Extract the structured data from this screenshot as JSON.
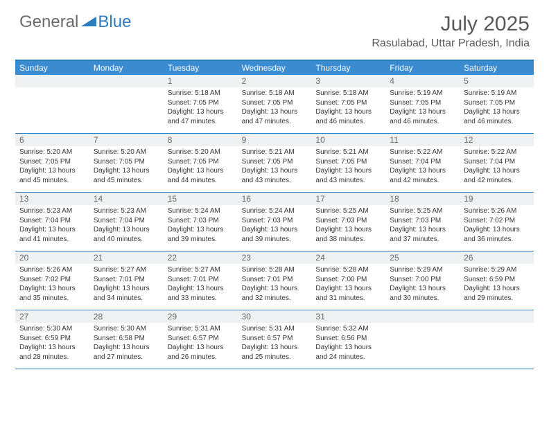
{
  "logo": {
    "general": "General",
    "blue": "Blue"
  },
  "title": "July 2025",
  "subtitle": "Rasulabad, Uttar Pradesh, India",
  "colors": {
    "header_blue": "#3b8bd0",
    "border_blue": "#2e7cc0",
    "daynum_bg": "#eef0f2",
    "text_gray": "#5a5a5a"
  },
  "weekdays": [
    "Sunday",
    "Monday",
    "Tuesday",
    "Wednesday",
    "Thursday",
    "Friday",
    "Saturday"
  ],
  "weeks": [
    [
      null,
      null,
      {
        "n": "1",
        "sr": "Sunrise: 5:18 AM",
        "ss": "Sunset: 7:05 PM",
        "dl": "Daylight: 13 hours and 47 minutes."
      },
      {
        "n": "2",
        "sr": "Sunrise: 5:18 AM",
        "ss": "Sunset: 7:05 PM",
        "dl": "Daylight: 13 hours and 47 minutes."
      },
      {
        "n": "3",
        "sr": "Sunrise: 5:18 AM",
        "ss": "Sunset: 7:05 PM",
        "dl": "Daylight: 13 hours and 46 minutes."
      },
      {
        "n": "4",
        "sr": "Sunrise: 5:19 AM",
        "ss": "Sunset: 7:05 PM",
        "dl": "Daylight: 13 hours and 46 minutes."
      },
      {
        "n": "5",
        "sr": "Sunrise: 5:19 AM",
        "ss": "Sunset: 7:05 PM",
        "dl": "Daylight: 13 hours and 46 minutes."
      }
    ],
    [
      {
        "n": "6",
        "sr": "Sunrise: 5:20 AM",
        "ss": "Sunset: 7:05 PM",
        "dl": "Daylight: 13 hours and 45 minutes."
      },
      {
        "n": "7",
        "sr": "Sunrise: 5:20 AM",
        "ss": "Sunset: 7:05 PM",
        "dl": "Daylight: 13 hours and 45 minutes."
      },
      {
        "n": "8",
        "sr": "Sunrise: 5:20 AM",
        "ss": "Sunset: 7:05 PM",
        "dl": "Daylight: 13 hours and 44 minutes."
      },
      {
        "n": "9",
        "sr": "Sunrise: 5:21 AM",
        "ss": "Sunset: 7:05 PM",
        "dl": "Daylight: 13 hours and 43 minutes."
      },
      {
        "n": "10",
        "sr": "Sunrise: 5:21 AM",
        "ss": "Sunset: 7:05 PM",
        "dl": "Daylight: 13 hours and 43 minutes."
      },
      {
        "n": "11",
        "sr": "Sunrise: 5:22 AM",
        "ss": "Sunset: 7:04 PM",
        "dl": "Daylight: 13 hours and 42 minutes."
      },
      {
        "n": "12",
        "sr": "Sunrise: 5:22 AM",
        "ss": "Sunset: 7:04 PM",
        "dl": "Daylight: 13 hours and 42 minutes."
      }
    ],
    [
      {
        "n": "13",
        "sr": "Sunrise: 5:23 AM",
        "ss": "Sunset: 7:04 PM",
        "dl": "Daylight: 13 hours and 41 minutes."
      },
      {
        "n": "14",
        "sr": "Sunrise: 5:23 AM",
        "ss": "Sunset: 7:04 PM",
        "dl": "Daylight: 13 hours and 40 minutes."
      },
      {
        "n": "15",
        "sr": "Sunrise: 5:24 AM",
        "ss": "Sunset: 7:03 PM",
        "dl": "Daylight: 13 hours and 39 minutes."
      },
      {
        "n": "16",
        "sr": "Sunrise: 5:24 AM",
        "ss": "Sunset: 7:03 PM",
        "dl": "Daylight: 13 hours and 39 minutes."
      },
      {
        "n": "17",
        "sr": "Sunrise: 5:25 AM",
        "ss": "Sunset: 7:03 PM",
        "dl": "Daylight: 13 hours and 38 minutes."
      },
      {
        "n": "18",
        "sr": "Sunrise: 5:25 AM",
        "ss": "Sunset: 7:03 PM",
        "dl": "Daylight: 13 hours and 37 minutes."
      },
      {
        "n": "19",
        "sr": "Sunrise: 5:26 AM",
        "ss": "Sunset: 7:02 PM",
        "dl": "Daylight: 13 hours and 36 minutes."
      }
    ],
    [
      {
        "n": "20",
        "sr": "Sunrise: 5:26 AM",
        "ss": "Sunset: 7:02 PM",
        "dl": "Daylight: 13 hours and 35 minutes."
      },
      {
        "n": "21",
        "sr": "Sunrise: 5:27 AM",
        "ss": "Sunset: 7:01 PM",
        "dl": "Daylight: 13 hours and 34 minutes."
      },
      {
        "n": "22",
        "sr": "Sunrise: 5:27 AM",
        "ss": "Sunset: 7:01 PM",
        "dl": "Daylight: 13 hours and 33 minutes."
      },
      {
        "n": "23",
        "sr": "Sunrise: 5:28 AM",
        "ss": "Sunset: 7:01 PM",
        "dl": "Daylight: 13 hours and 32 minutes."
      },
      {
        "n": "24",
        "sr": "Sunrise: 5:28 AM",
        "ss": "Sunset: 7:00 PM",
        "dl": "Daylight: 13 hours and 31 minutes."
      },
      {
        "n": "25",
        "sr": "Sunrise: 5:29 AM",
        "ss": "Sunset: 7:00 PM",
        "dl": "Daylight: 13 hours and 30 minutes."
      },
      {
        "n": "26",
        "sr": "Sunrise: 5:29 AM",
        "ss": "Sunset: 6:59 PM",
        "dl": "Daylight: 13 hours and 29 minutes."
      }
    ],
    [
      {
        "n": "27",
        "sr": "Sunrise: 5:30 AM",
        "ss": "Sunset: 6:59 PM",
        "dl": "Daylight: 13 hours and 28 minutes."
      },
      {
        "n": "28",
        "sr": "Sunrise: 5:30 AM",
        "ss": "Sunset: 6:58 PM",
        "dl": "Daylight: 13 hours and 27 minutes."
      },
      {
        "n": "29",
        "sr": "Sunrise: 5:31 AM",
        "ss": "Sunset: 6:57 PM",
        "dl": "Daylight: 13 hours and 26 minutes."
      },
      {
        "n": "30",
        "sr": "Sunrise: 5:31 AM",
        "ss": "Sunset: 6:57 PM",
        "dl": "Daylight: 13 hours and 25 minutes."
      },
      {
        "n": "31",
        "sr": "Sunrise: 5:32 AM",
        "ss": "Sunset: 6:56 PM",
        "dl": "Daylight: 13 hours and 24 minutes."
      },
      null,
      null
    ]
  ]
}
